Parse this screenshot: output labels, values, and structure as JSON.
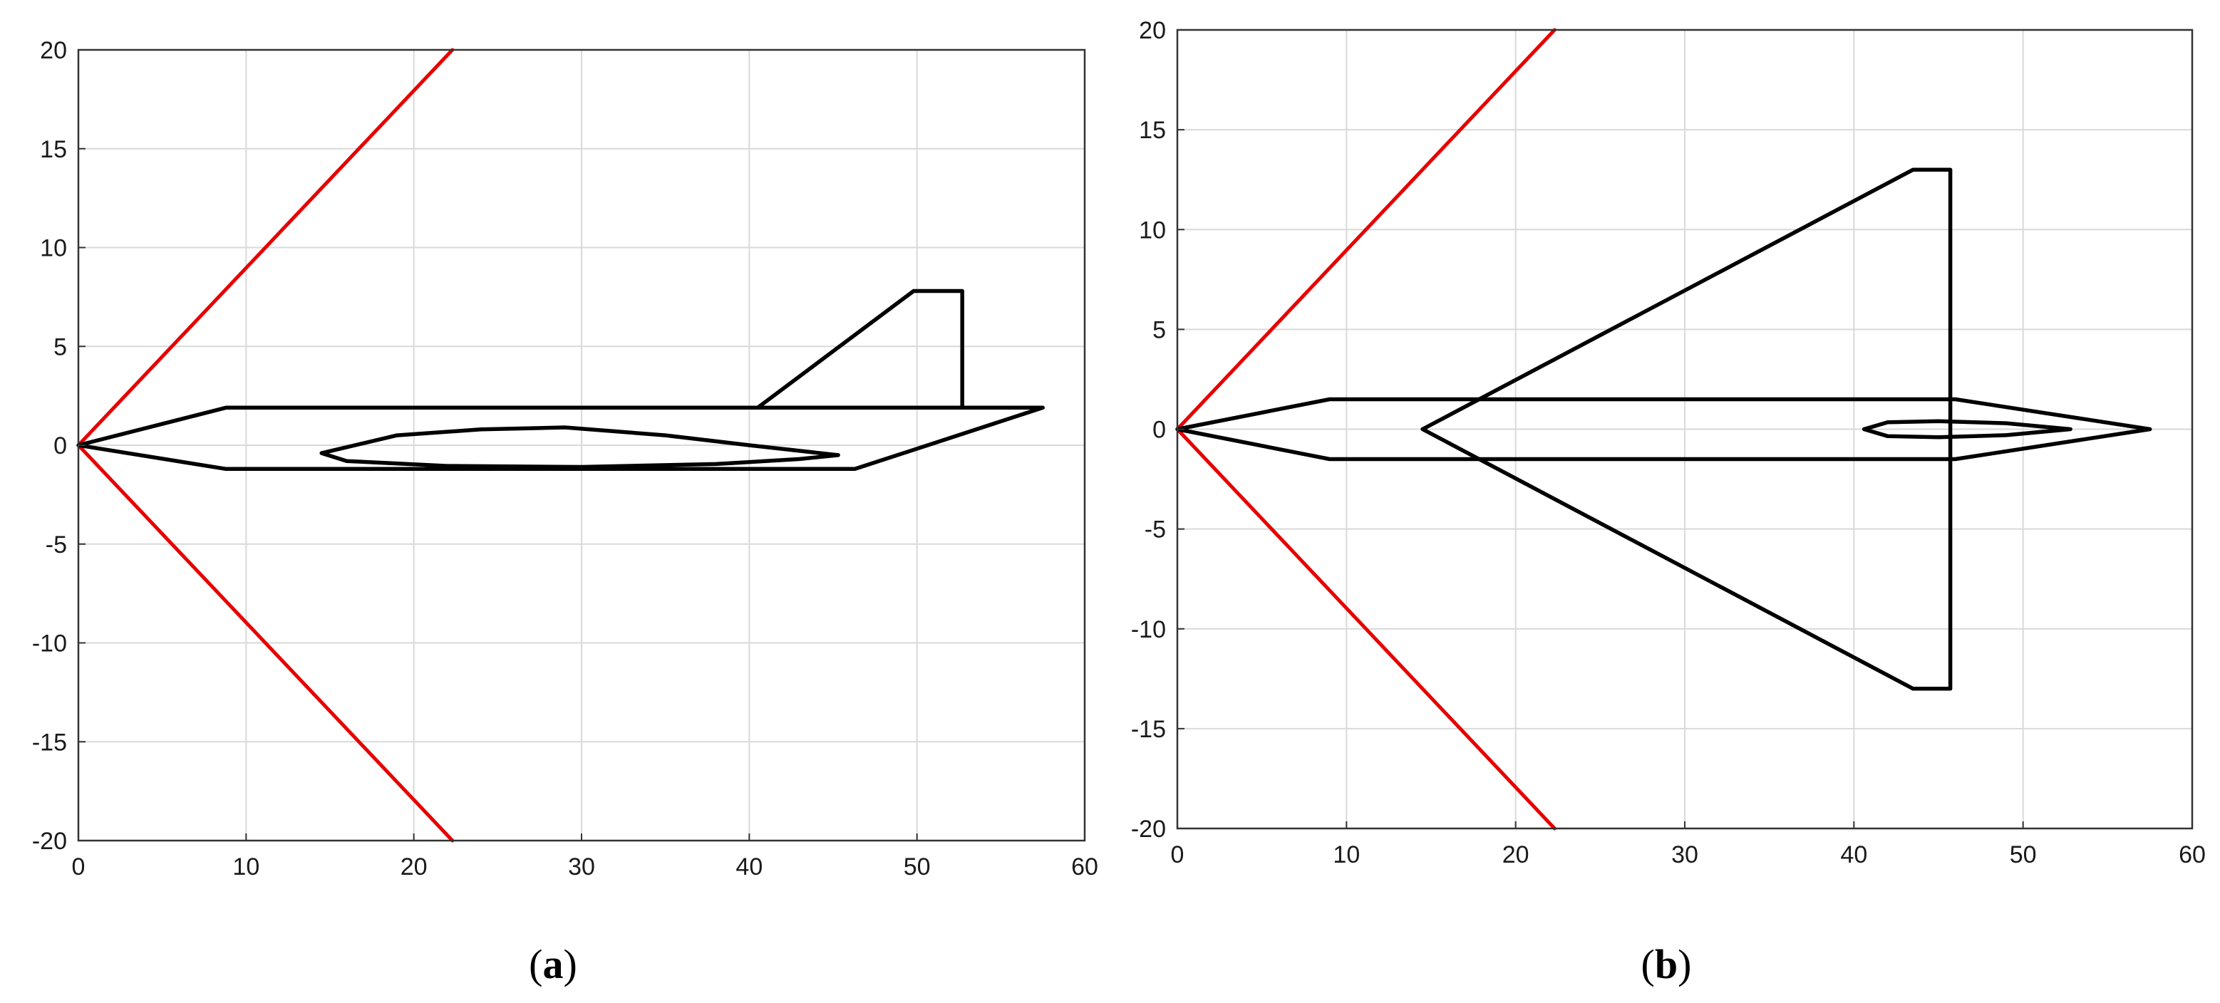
{
  "colors": {
    "shock_line": "#e60000",
    "aircraft_outline": "#000000",
    "grid": "#d9d9d9",
    "axes_box": "#333333",
    "background": "#ffffff"
  },
  "chart_data": [
    {
      "type": "line",
      "panel": "a",
      "caption_open": "(",
      "caption_letter": "a",
      "caption_close": ")",
      "title": "",
      "xlabel": "",
      "ylabel": "",
      "xlim": [
        0,
        60
      ],
      "ylim": [
        -20,
        20
      ],
      "xticks": [
        0,
        10,
        20,
        30,
        40,
        50,
        60
      ],
      "yticks": [
        20,
        15,
        10,
        5,
        0,
        -5,
        -10,
        -15,
        -20
      ],
      "grid": true,
      "legend": "none",
      "series": [
        {
          "role": "shock-cone-upper",
          "color": "#e60000",
          "points": [
            [
              0,
              0
            ],
            [
              22.3,
              20
            ]
          ]
        },
        {
          "role": "shock-cone-lower",
          "color": "#e60000",
          "points": [
            [
              0,
              0
            ],
            [
              22.3,
              -20
            ]
          ]
        },
        {
          "role": "fuselage",
          "color": "#000000",
          "points": [
            [
              0,
              0
            ],
            [
              8.8,
              1.9
            ],
            [
              57.5,
              1.9
            ],
            [
              46.3,
              -1.2
            ],
            [
              8.8,
              -1.2
            ],
            [
              0,
              0
            ]
          ]
        },
        {
          "role": "vertical-tail",
          "color": "#000000",
          "points": [
            [
              40.5,
              1.9
            ],
            [
              49.8,
              7.8
            ],
            [
              52.7,
              7.8
            ],
            [
              52.7,
              1.9
            ]
          ]
        },
        {
          "role": "wing-profile",
          "color": "#000000",
          "closed": true,
          "points": [
            [
              45.3,
              -0.5
            ],
            [
              40,
              0
            ],
            [
              35,
              0.5
            ],
            [
              29,
              0.9
            ],
            [
              24,
              0.8
            ],
            [
              19,
              0.5
            ],
            [
              14.5,
              -0.4
            ],
            [
              16,
              -0.8
            ],
            [
              22,
              -1.05
            ],
            [
              30,
              -1.1
            ],
            [
              38,
              -0.95
            ],
            [
              43,
              -0.7
            ],
            [
              45.3,
              -0.5
            ]
          ]
        }
      ]
    },
    {
      "type": "line",
      "panel": "b",
      "caption_open": "(",
      "caption_letter": "b",
      "caption_close": ")",
      "title": "",
      "xlabel": "",
      "ylabel": "",
      "xlim": [
        0,
        60
      ],
      "ylim": [
        -20,
        20
      ],
      "xticks": [
        0,
        10,
        20,
        30,
        40,
        50,
        60
      ],
      "yticks": [
        20,
        15,
        10,
        5,
        0,
        -5,
        -10,
        -15,
        -20
      ],
      "grid": true,
      "legend": "none",
      "series": [
        {
          "role": "shock-cone-upper",
          "color": "#e60000",
          "points": [
            [
              0,
              0
            ],
            [
              22.3,
              20
            ]
          ]
        },
        {
          "role": "shock-cone-lower",
          "color": "#e60000",
          "points": [
            [
              0,
              0
            ],
            [
              22.3,
              -20
            ]
          ]
        },
        {
          "role": "fuselage",
          "color": "#000000",
          "points": [
            [
              0,
              0
            ],
            [
              9,
              1.5
            ],
            [
              46,
              1.5
            ],
            [
              57.5,
              0
            ],
            [
              46,
              -1.5
            ],
            [
              9,
              -1.5
            ],
            [
              0,
              0
            ]
          ]
        },
        {
          "role": "delta-wing",
          "color": "#000000",
          "points": [
            [
              14.5,
              0
            ],
            [
              43.5,
              13
            ],
            [
              45.7,
              13
            ],
            [
              45.7,
              -13
            ],
            [
              43.5,
              -13
            ],
            [
              14.5,
              0
            ]
          ]
        },
        {
          "role": "engine-nacelle",
          "color": "#000000",
          "closed": true,
          "points": [
            [
              52.8,
              0
            ],
            [
              49,
              0.3
            ],
            [
              45,
              0.4
            ],
            [
              42,
              0.35
            ],
            [
              40.6,
              0
            ],
            [
              42,
              -0.35
            ],
            [
              45,
              -0.4
            ],
            [
              49,
              -0.3
            ],
            [
              52.8,
              0
            ]
          ]
        }
      ]
    }
  ]
}
